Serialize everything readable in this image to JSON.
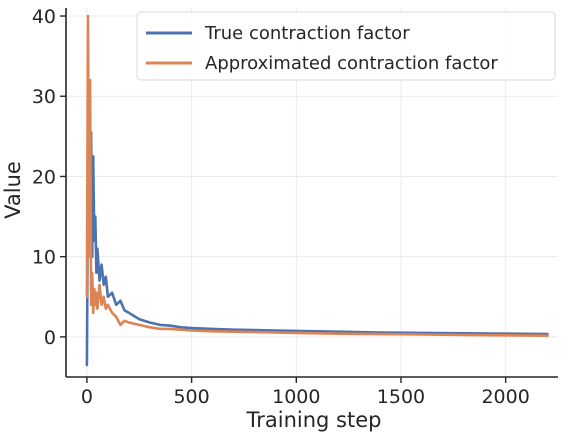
{
  "chart_data": {
    "type": "line",
    "title": "",
    "xlabel": "Training step",
    "ylabel": "Value",
    "xlim": [
      -100,
      2250
    ],
    "ylim": [
      -5,
      41
    ],
    "xticks": [
      0,
      500,
      1000,
      1500,
      2000
    ],
    "yticks": [
      0,
      10,
      20,
      30,
      40
    ],
    "xtick_labels": [
      "0",
      "500",
      "1000",
      "1500",
      "2000"
    ],
    "ytick_labels": [
      "0",
      "10",
      "20",
      "30",
      "40"
    ],
    "grid": true,
    "legend_position": "top-right",
    "series": [
      {
        "name": "True contraction factor",
        "color": "#4c72b0",
        "x": [
          0,
          5,
          10,
          15,
          20,
          25,
          30,
          35,
          40,
          45,
          50,
          60,
          70,
          80,
          90,
          100,
          120,
          140,
          160,
          180,
          200,
          250,
          300,
          350,
          400,
          450,
          500,
          600,
          700,
          800,
          900,
          1000,
          1200,
          1400,
          1600,
          1800,
          2000,
          2200
        ],
        "y": [
          -3.5,
          20,
          30,
          14,
          25.5,
          10,
          22.5,
          12,
          15,
          8,
          11,
          7,
          9,
          6.5,
          7.5,
          5,
          5.5,
          4,
          4.5,
          3.3,
          3,
          2.2,
          1.8,
          1.5,
          1.4,
          1.2,
          1.1,
          1.0,
          0.9,
          0.85,
          0.8,
          0.75,
          0.65,
          0.55,
          0.5,
          0.45,
          0.4,
          0.35
        ]
      },
      {
        "name": "Approximated contraction factor",
        "color": "#dd8452",
        "x": [
          0,
          5,
          10,
          15,
          20,
          25,
          30,
          35,
          40,
          45,
          50,
          60,
          70,
          80,
          90,
          100,
          120,
          140,
          160,
          180,
          200,
          250,
          300,
          350,
          400,
          450,
          500,
          600,
          700,
          800,
          900,
          1000,
          1200,
          1400,
          1600,
          1800,
          2000,
          2200
        ],
        "y": [
          5,
          40,
          10,
          32,
          4,
          8,
          3,
          6,
          4,
          5.5,
          3.5,
          6.5,
          4,
          5,
          3.5,
          4,
          3,
          2.5,
          1.5,
          2,
          1.8,
          1.5,
          1.2,
          1.0,
          1.0,
          0.9,
          0.8,
          0.7,
          0.65,
          0.6,
          0.55,
          0.5,
          0.4,
          0.35,
          0.3,
          0.25,
          0.2,
          0.15
        ]
      }
    ]
  }
}
